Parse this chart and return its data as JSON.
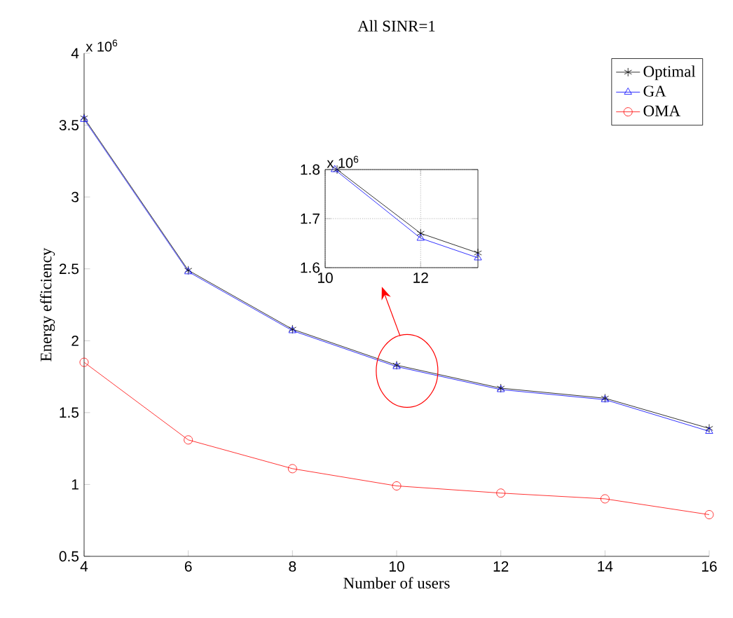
{
  "chart_data": [
    {
      "type": "line",
      "title": "All SINR=1",
      "xlabel": "Number of users",
      "ylabel": "Energy efficiency",
      "annotations": [
        "x 10$^{6}$"
      ],
      "x": [
        4,
        6,
        8,
        10,
        12,
        14,
        16
      ],
      "xlim": [
        4,
        16
      ],
      "xticks": [
        4,
        6,
        8,
        10,
        12,
        14,
        16
      ],
      "ylim": [
        0.5,
        4
      ],
      "yticks": [
        0.5,
        1,
        1.5,
        2,
        2.5,
        3,
        3.5,
        4
      ],
      "legend": "top right",
      "grid": false,
      "series": [
        {
          "name": "Optimal",
          "color": "#000000",
          "marker": "cross",
          "values": [
            3.55,
            2.49,
            2.08,
            1.83,
            1.67,
            1.6,
            1.39
          ]
        },
        {
          "name": "GA",
          "color": "#0000ff",
          "marker": "triangle",
          "values": [
            3.54,
            2.48,
            2.07,
            1.82,
            1.66,
            1.59,
            1.37
          ]
        },
        {
          "name": "OMA",
          "color": "#ff0000",
          "marker": "circle",
          "values": [
            1.85,
            1.31,
            1.11,
            0.99,
            0.94,
            0.9,
            0.79
          ]
        }
      ]
    },
    {
      "type": "line",
      "annotations": [
        "x 10$^{6}$"
      ],
      "x": [
        10.25,
        12,
        13.2
      ],
      "xlim": [
        10,
        13.2
      ],
      "xticks": [
        10,
        12
      ],
      "ylim": [
        1.6,
        1.8
      ],
      "yticks": [
        1.6,
        1.7,
        1.8
      ],
      "grid": true,
      "series": [
        {
          "color": "#000000",
          "marker": "cross",
          "values": [
            1.8,
            1.67,
            1.63
          ]
        },
        {
          "color": "#0000ff",
          "marker": "triangle",
          "x": [
            10.2,
            12,
            13.2
          ],
          "values": [
            1.8,
            1.66,
            1.62
          ]
        }
      ]
    }
  ]
}
